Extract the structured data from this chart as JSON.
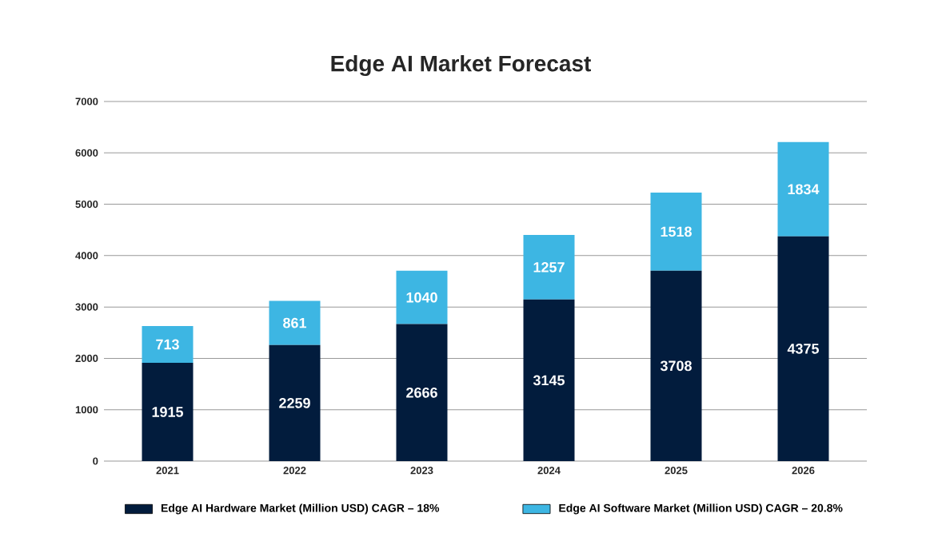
{
  "chart_data": {
    "type": "bar",
    "stacked": true,
    "title": "Edge AI Market Forecast",
    "categories": [
      "2021",
      "2022",
      "2023",
      "2024",
      "2025",
      "2026"
    ],
    "series": [
      {
        "name": "Edge AI Hardware Market (Million USD) CAGR – 18%",
        "color": "#021c3d",
        "values": [
          1915,
          2259,
          2666,
          3145,
          3708,
          4375
        ]
      },
      {
        "name": "Edge AI Software Market (Million USD) CAGR – 20.8%",
        "color": "#3db6e3",
        "values": [
          713,
          861,
          1040,
          1257,
          1518,
          1834
        ]
      }
    ],
    "ylim": [
      0,
      7000
    ],
    "yticks": [
      0,
      1000,
      2000,
      3000,
      4000,
      5000,
      6000,
      7000
    ],
    "grid": "y",
    "legend": "bottom",
    "data_labels": true
  }
}
